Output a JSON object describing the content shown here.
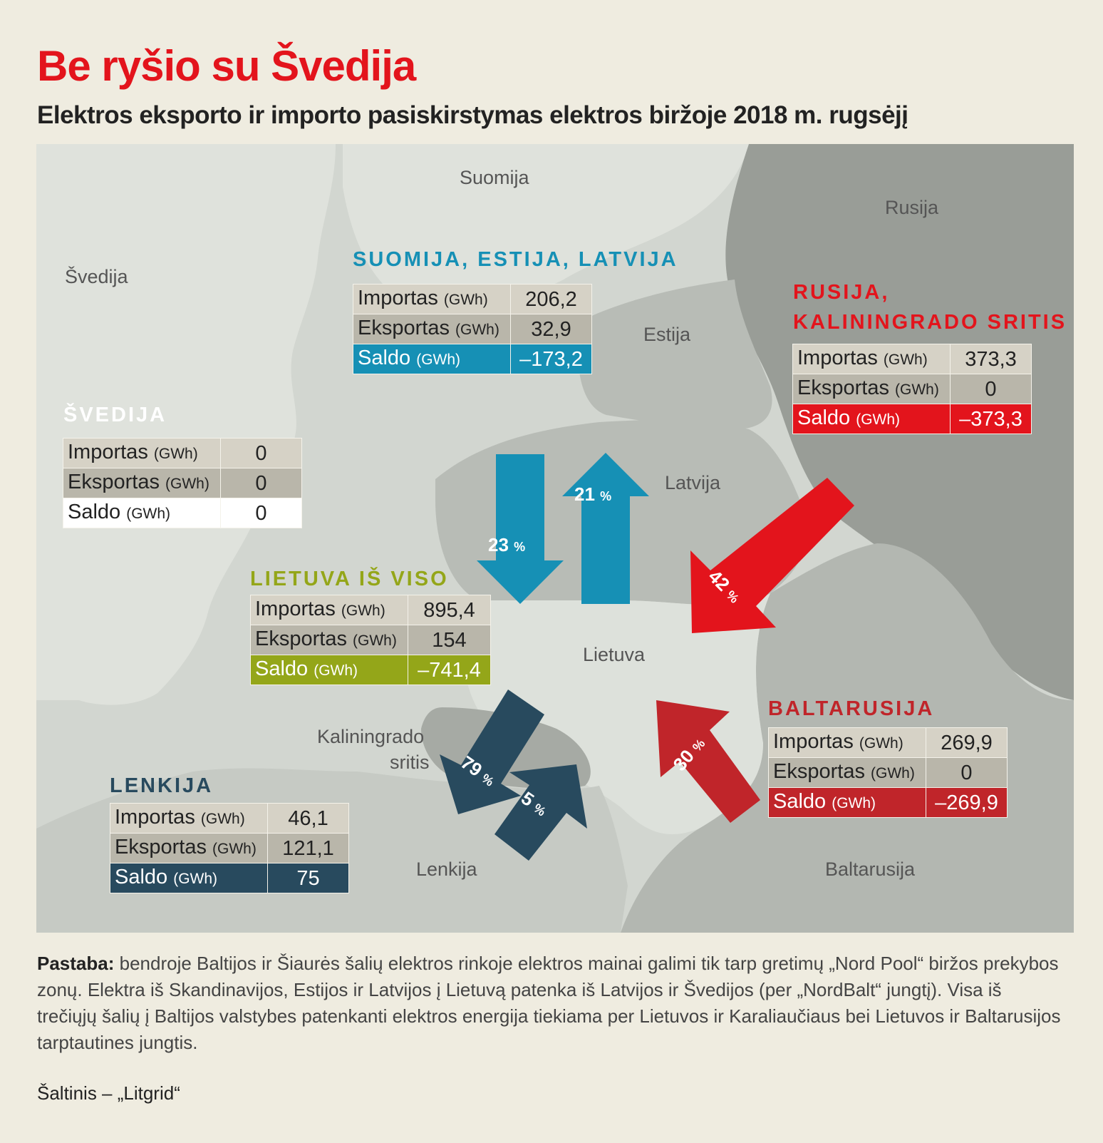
{
  "title": "Be ryšio su Švedija",
  "subtitle": "Elektros eksporto ir importo pasiskirstymas elektros biržoje 2018 m. rugsėjį",
  "countries": {
    "suomija": "Suomija",
    "rusija": "Rusija",
    "svedija": "Švedija",
    "estija": "Estija",
    "latvija": "Latvija",
    "lietuva": "Lietuva",
    "kaliningradas_line1": "Kaliningrado",
    "kaliningradas_line2": "sritis",
    "lenkija": "Lenkija",
    "baltarusija": "Baltarusija"
  },
  "labels": {
    "importas": "Importas",
    "eksportas": "Eksportas",
    "saldo": "Saldo",
    "unit": "(GWh)"
  },
  "colors": {
    "blue": "#1690b5",
    "red": "#e3141c",
    "olive": "#94a619",
    "navy": "#284a5e",
    "darkred": "#c0252a",
    "white": "#ffffff"
  },
  "boxes": {
    "sel": {
      "title": "SUOMIJA, ESTIJA, LATVIJA",
      "importas": "206,2",
      "eksportas": "32,9",
      "saldo": "–173,2"
    },
    "rusija": {
      "title_line1": "RUSIJA,",
      "title_line2": "KALININGRADO SRITIS",
      "importas": "373,3",
      "eksportas": "0",
      "saldo": "–373,3"
    },
    "svedija": {
      "title": "ŠVEDIJA",
      "importas": "0",
      "eksportas": "0",
      "saldo": "0"
    },
    "lietuva": {
      "title": "LIETUVA IŠ VISO",
      "importas": "895,4",
      "eksportas": "154",
      "saldo": "–741,4"
    },
    "baltarusija": {
      "title": "BALTARUSIJA",
      "importas": "269,9",
      "eksportas": "0",
      "saldo": "–269,9"
    },
    "lenkija": {
      "title": "LENKIJA",
      "importas": "46,1",
      "eksportas": "121,1",
      "saldo": "75"
    }
  },
  "arrows": {
    "sel_import": {
      "value": "23",
      "unit": "%"
    },
    "sel_export": {
      "value": "21",
      "unit": "%"
    },
    "rusija_import": {
      "value": "42",
      "unit": "%"
    },
    "baltarusija_import": {
      "value": "30",
      "unit": "%"
    },
    "lenkija_export": {
      "value": "79",
      "unit": "%"
    },
    "lenkija_import": {
      "value": "5",
      "unit": "%"
    }
  },
  "note": {
    "bold": "Pastaba:",
    "text": " bendroje Baltijos ir Šiaurės šalių elektros rinkoje elektros mainai galimi tik tarp gretimų „Nord Pool“ biržos prekybos zonų. Elektra iš Skandinavijos, Estijos ir Latvijos į Lietuvą patenka iš Latvijos ir Švedijos (per „NordBalt“ jungtį). Visa iš trečiųjų šalių į Baltijos valstybes patenkanti elektros energija tiekiama per Lietuvos ir Karaliaučiaus bei Lietuvos ir Baltarusijos tarptautines jungtis."
  },
  "source": "Šaltinis – „Litgrid“"
}
